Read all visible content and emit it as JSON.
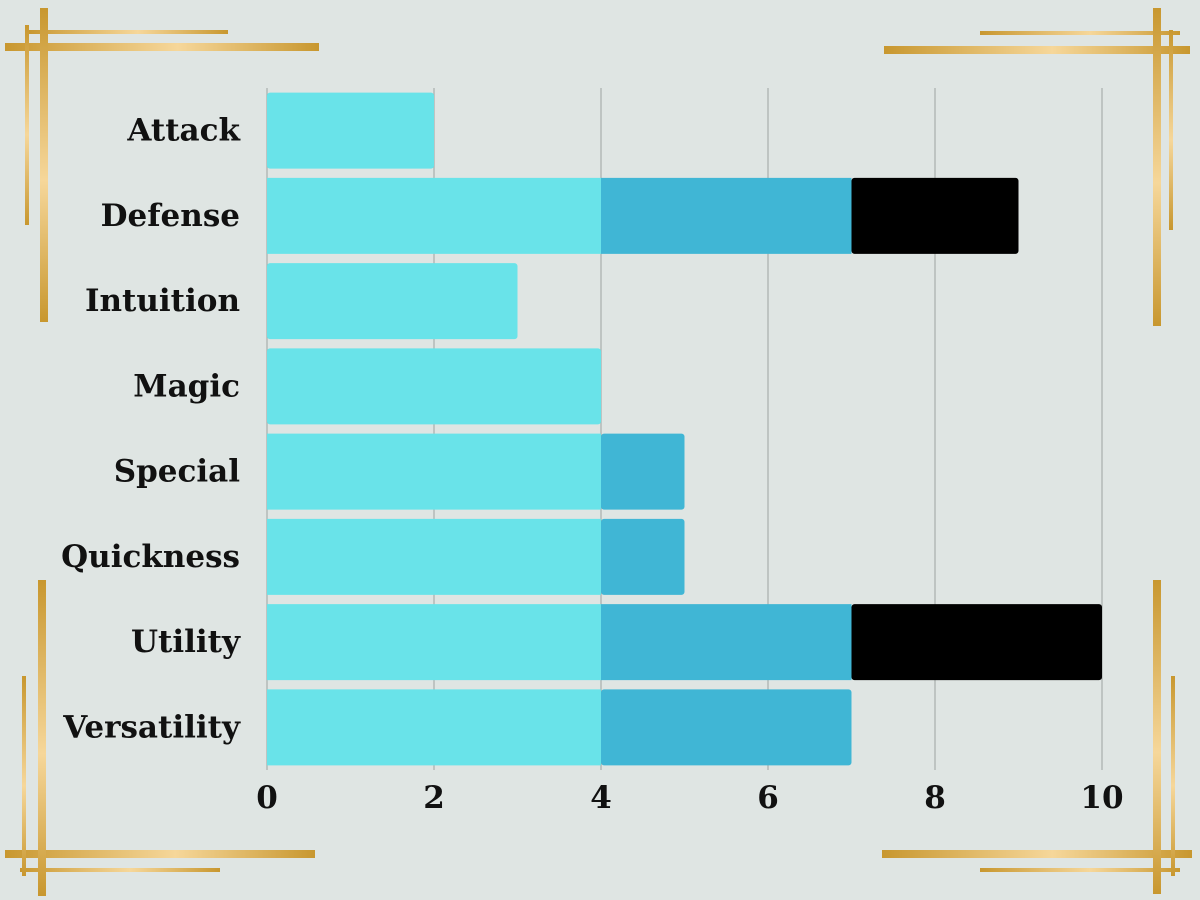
{
  "chart_data": {
    "type": "bar",
    "orientation": "horizontal",
    "stacked": true,
    "categories": [
      "Attack",
      "Defense",
      "Intuition",
      "Magic",
      "Special",
      "Quickness",
      "Utility",
      "Versatility"
    ],
    "series": [
      {
        "color": "#69e3e9",
        "values": [
          2,
          4,
          3,
          4,
          4,
          4,
          4,
          4
        ]
      },
      {
        "color": "#40b6d5",
        "values": [
          0,
          3,
          0,
          0,
          1,
          1,
          3,
          3
        ]
      },
      {
        "color": "#000000",
        "values": [
          0,
          2,
          0,
          0,
          0,
          0,
          3,
          0
        ]
      }
    ],
    "xlim": [
      0,
      10
    ],
    "xticks": [
      "0",
      "2",
      "4",
      "6",
      "8",
      "10"
    ],
    "grid": true,
    "title": "",
    "xlabel": "",
    "ylabel": ""
  },
  "colors": {
    "background": "#dfe5e3",
    "gridline": "#a9aeac",
    "text": "#111111",
    "frame_gold": "#c8972f",
    "frame_highlight": "#f6d79a"
  }
}
